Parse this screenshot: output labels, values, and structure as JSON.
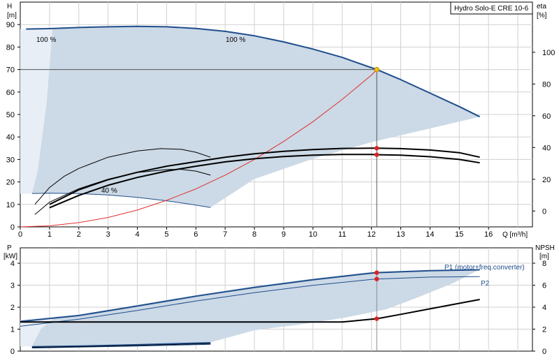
{
  "colors": {
    "envelope": "#ccd9e6",
    "envelope_light": "#e8eef5",
    "curve_blue": "#1f4e8c",
    "curve_black": "#000000",
    "system_red": "#e03030",
    "marker_red": "#e02020",
    "marker_yellow": "#f2c200",
    "grid": "#d0d0d0"
  },
  "chart_data": [
    {
      "type": "line",
      "title": "Hydro Solo-E CRE 10-6",
      "xlabel": "Q [m³/h]",
      "x_ticks": [
        "0",
        "1",
        "2",
        "3",
        "4",
        "5",
        "6",
        "7",
        "8",
        "9",
        "10",
        "11",
        "12",
        "13",
        "14",
        "15",
        "16"
      ],
      "xlim": [
        0,
        17.5
      ],
      "y_left": {
        "label": "H",
        "unit": "[m]",
        "ylim": [
          0,
          100
        ],
        "ticks": [
          "0",
          "10",
          "20",
          "30",
          "40",
          "50",
          "60",
          "70",
          "80",
          "90"
        ]
      },
      "y_right": {
        "label": "eta",
        "unit": "[%]",
        "ylim": [
          -10,
          131.6
        ],
        "ticks": [
          "0",
          "20",
          "40",
          "60",
          "80",
          "100"
        ]
      },
      "annotations": [
        "100 %",
        "100 %",
        "40 %"
      ],
      "series": [
        {
          "role": "head_100",
          "axis": "left",
          "color": "blue",
          "width": 2,
          "points": [
            [
              0.2,
              88
            ],
            [
              1,
              88.2
            ],
            [
              2,
              88.7
            ],
            [
              3,
              89
            ],
            [
              4,
              89.2
            ],
            [
              5,
              89
            ],
            [
              6,
              88.3
            ],
            [
              7,
              87
            ],
            [
              8,
              85
            ],
            [
              9,
              82.3
            ],
            [
              10,
              79.1
            ],
            [
              11,
              75.4
            ],
            [
              12,
              70.8
            ],
            [
              12.18,
              70
            ],
            [
              13,
              65.5
            ],
            [
              14,
              59.5
            ],
            [
              15,
              53.5
            ],
            [
              15.7,
              49
            ]
          ]
        },
        {
          "role": "head_40",
          "axis": "left",
          "color": "blue",
          "width": 1,
          "points": [
            [
              0.4,
              14.8
            ],
            [
              1,
              15
            ],
            [
              2,
              14.8
            ],
            [
              3,
              14.2
            ],
            [
              4,
              13.1
            ],
            [
              5,
              11.6
            ],
            [
              6,
              9.7
            ],
            [
              6.5,
              8.6
            ]
          ]
        },
        {
          "role": "system_curve",
          "axis": "left",
          "color": "red",
          "width": 1,
          "points": [
            [
              0,
              0
            ],
            [
              1,
              0.47
            ],
            [
              2,
              1.9
            ],
            [
              3,
              4.2
            ],
            [
              4,
              7.5
            ],
            [
              5,
              11.8
            ],
            [
              6,
              16.9
            ],
            [
              7,
              23
            ],
            [
              8,
              30
            ],
            [
              9,
              38
            ],
            [
              10,
              46.8
            ],
            [
              11,
              56.7
            ],
            [
              12,
              67.5
            ],
            [
              12.18,
              70
            ]
          ]
        },
        {
          "role": "eta_thin",
          "axis": "left",
          "color": "black",
          "width": 1,
          "points": [
            [
              0.5,
              10
            ],
            [
              1,
              17.5
            ],
            [
              1.5,
              22.5
            ],
            [
              2,
              26
            ],
            [
              3,
              31
            ],
            [
              4,
              33.8
            ],
            [
              4.8,
              34.8
            ],
            [
              5.5,
              34.5
            ],
            [
              6,
              33.2
            ],
            [
              6.5,
              31
            ]
          ]
        },
        {
          "role": "eta_thin_lower",
          "axis": "left",
          "color": "black",
          "width": 1,
          "points": [
            [
              0.5,
              5.5
            ],
            [
              1,
              11
            ],
            [
              2,
              17
            ],
            [
              3,
              21.2
            ],
            [
              4,
              24.2
            ],
            [
              5,
              25.5
            ],
            [
              5.5,
              25.6
            ],
            [
              6,
              24.8
            ],
            [
              6.5,
              23
            ]
          ]
        },
        {
          "role": "eta_pump",
          "axis": "left",
          "color": "black",
          "width": 2,
          "points": [
            [
              1,
              10
            ],
            [
              2,
              16.5
            ],
            [
              3,
              21
            ],
            [
              4,
              24.3
            ],
            [
              5,
              27
            ],
            [
              6,
              29
            ],
            [
              7,
              31
            ],
            [
              8,
              32.5
            ],
            [
              9,
              33.6
            ],
            [
              10,
              34.4
            ],
            [
              11,
              34.9
            ],
            [
              12,
              35
            ],
            [
              12.18,
              35
            ],
            [
              13,
              34.8
            ],
            [
              14,
              34.2
            ],
            [
              15,
              33
            ],
            [
              15.7,
              31
            ]
          ]
        },
        {
          "role": "eta_total",
          "axis": "left",
          "color": "black",
          "width": 2,
          "points": [
            [
              1,
              8.5
            ],
            [
              2,
              14
            ],
            [
              3,
              18.5
            ],
            [
              4,
              22
            ],
            [
              5,
              24.8
            ],
            [
              6,
              27
            ],
            [
              7,
              28.9
            ],
            [
              8,
              30.3
            ],
            [
              9,
              31.3
            ],
            [
              10,
              31.9
            ],
            [
              11,
              32.2
            ],
            [
              12,
              32.2
            ],
            [
              12.18,
              32.1
            ],
            [
              13,
              31.9
            ],
            [
              14,
              31.2
            ],
            [
              15,
              30
            ],
            [
              15.7,
              28.5
            ]
          ]
        }
      ],
      "markers": [
        {
          "x": 12.18,
          "y": 70,
          "color": "yellow"
        },
        {
          "x": 12.18,
          "y": 35,
          "color": "red"
        },
        {
          "x": 12.18,
          "y": 32.1,
          "color": "red"
        }
      ],
      "duty_point": {
        "x": 12.18,
        "y": 70
      },
      "envelope_poly": [
        [
          0.1,
          88
        ],
        [
          1,
          88.2
        ],
        [
          2,
          88.7
        ],
        [
          3,
          89
        ],
        [
          4,
          89.2
        ],
        [
          5,
          89
        ],
        [
          6,
          88.3
        ],
        [
          7,
          87
        ],
        [
          8,
          85
        ],
        [
          9,
          82.3
        ],
        [
          10,
          79.1
        ],
        [
          11,
          75.4
        ],
        [
          12,
          70.8
        ],
        [
          13,
          65.5
        ],
        [
          14,
          59.5
        ],
        [
          15,
          53.5
        ],
        [
          15.7,
          49
        ],
        [
          14,
          43.8
        ],
        [
          12,
          37.7
        ],
        [
          10,
          30.3
        ],
        [
          8,
          21.3
        ],
        [
          6.5,
          8.6
        ],
        [
          6,
          9.7
        ],
        [
          5,
          11.6
        ],
        [
          4,
          13.1
        ],
        [
          3,
          14.2
        ],
        [
          2,
          14.8
        ],
        [
          1,
          15
        ],
        [
          0.4,
          14.8
        ]
      ],
      "envelope_light_poly": [
        [
          0,
          88
        ],
        [
          1.1,
          88
        ],
        [
          0.9,
          55
        ],
        [
          0.6,
          25
        ],
        [
          0.4,
          14.8
        ],
        [
          0,
          14.8
        ]
      ]
    },
    {
      "type": "line",
      "title": "",
      "x_ticks": [],
      "xlim": [
        0,
        17.5
      ],
      "y_left": {
        "label": "P",
        "unit": "[kW]",
        "ylim": [
          0,
          4.7
        ],
        "ticks": [
          "0",
          "1",
          "2",
          "3",
          "4"
        ]
      },
      "y_right": {
        "label": "NPSH",
        "unit": "[m]",
        "ylim": [
          0,
          9.4
        ],
        "ticks": [
          "0",
          "2",
          "4",
          "6",
          "8"
        ]
      },
      "series": [
        {
          "role": "P1",
          "name": "P1 (motor+freq.converter)",
          "axis": "left",
          "color": "blue",
          "width": 2,
          "points": [
            [
              0,
              1.35
            ],
            [
              2,
              1.62
            ],
            [
              4,
              2.05
            ],
            [
              6,
              2.5
            ],
            [
              8,
              2.9
            ],
            [
              10,
              3.25
            ],
            [
              12,
              3.55
            ],
            [
              12.18,
              3.57
            ],
            [
              14,
              3.66
            ],
            [
              15.7,
              3.7
            ]
          ]
        },
        {
          "role": "P2",
          "name": "P2",
          "axis": "left",
          "color": "blue",
          "width": 1,
          "points": [
            [
              0,
              1.13
            ],
            [
              2,
              1.45
            ],
            [
              4,
              1.85
            ],
            [
              6,
              2.28
            ],
            [
              8,
              2.66
            ],
            [
              10,
              2.99
            ],
            [
              12,
              3.26
            ],
            [
              12.18,
              3.28
            ],
            [
              14,
              3.37
            ],
            [
              15.7,
              3.39
            ]
          ]
        },
        {
          "role": "P1_min",
          "axis": "left",
          "color": "blue",
          "width": 2,
          "points": [
            [
              0.4,
              0.2
            ],
            [
              2,
              0.23
            ],
            [
              4,
              0.29
            ],
            [
              6.5,
              0.38
            ]
          ]
        },
        {
          "role": "P2_min",
          "axis": "left",
          "color": "blue",
          "width": 1,
          "points": [
            [
              0.4,
              0.14
            ],
            [
              2,
              0.18
            ],
            [
              4,
              0.23
            ],
            [
              6.5,
              0.31
            ]
          ]
        },
        {
          "role": "P_black_small",
          "axis": "left",
          "color": "black",
          "width": 1,
          "points": [
            [
              0.4,
              0.17
            ],
            [
              2,
              0.2
            ],
            [
              4,
              0.26
            ],
            [
              6.5,
              0.34
            ]
          ]
        },
        {
          "role": "NPSH",
          "axis": "right",
          "color": "black",
          "width": 2,
          "points": [
            [
              0,
              2.65
            ],
            [
              4,
              2.65
            ],
            [
              8,
              2.65
            ],
            [
              11,
              2.65
            ],
            [
              12,
              2.9
            ],
            [
              12.18,
              2.95
            ],
            [
              13,
              3.35
            ],
            [
              14,
              3.85
            ],
            [
              15,
              4.35
            ],
            [
              15.7,
              4.7
            ]
          ]
        }
      ],
      "markers": [
        {
          "x": 12.18,
          "y": 3.57,
          "color": "red"
        },
        {
          "x": 12.18,
          "y": 3.28,
          "color": "red"
        },
        {
          "x": 12.18,
          "y": 1.475,
          "color": "red"
        }
      ],
      "envelope_poly": [
        [
          0,
          1.42
        ],
        [
          2,
          1.66
        ],
        [
          4,
          2.1
        ],
        [
          6,
          2.55
        ],
        [
          8,
          2.95
        ],
        [
          10,
          3.3
        ],
        [
          12,
          3.6
        ],
        [
          13,
          3.65
        ],
        [
          14,
          3.68
        ],
        [
          15.7,
          3.72
        ],
        [
          14.8,
          3.1
        ],
        [
          13.5,
          2.4
        ],
        [
          12.5,
          1.9
        ],
        [
          11,
          1.5
        ],
        [
          9.5,
          1.2
        ],
        [
          8,
          0.95
        ],
        [
          6.5,
          0.4
        ],
        [
          4,
          0.3
        ],
        [
          2,
          0.26
        ],
        [
          0.4,
          0.22
        ],
        [
          0.2,
          0.22
        ],
        [
          0,
          0.22
        ]
      ],
      "envelope_light_poly": [
        [
          0,
          1.42
        ],
        [
          1.2,
          1.55
        ],
        [
          0.7,
          1.0
        ],
        [
          0.4,
          0.22
        ],
        [
          0,
          0.22
        ]
      ]
    }
  ]
}
